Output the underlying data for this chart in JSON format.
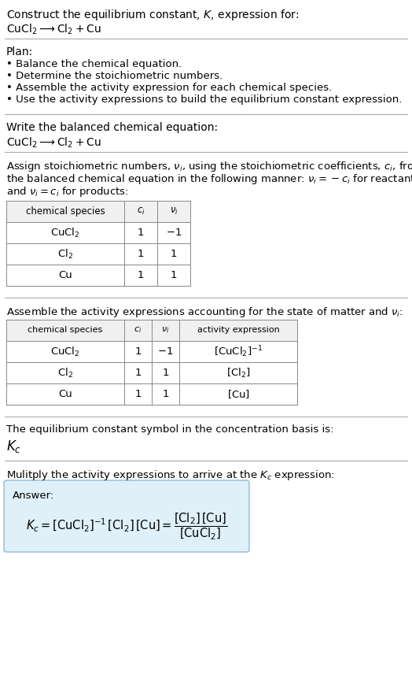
{
  "title_line1": "Construct the equilibrium constant, $K$, expression for:",
  "title_line2": "$\\mathrm{CuCl_2} \\longrightarrow \\mathrm{Cl_2} + \\mathrm{Cu}$",
  "plan_header": "Plan:",
  "plan_items": [
    "• Balance the chemical equation.",
    "• Determine the stoichiometric numbers.",
    "• Assemble the activity expression for each chemical species.",
    "• Use the activity expressions to build the equilibrium constant expression."
  ],
  "balanced_header": "Write the balanced chemical equation:",
  "balanced_eq": "$\\mathrm{CuCl_2} \\longrightarrow \\mathrm{Cl_2} + \\mathrm{Cu}$",
  "stoich_intro_lines": [
    "Assign stoichiometric numbers, $\\nu_i$, using the stoichiometric coefficients, $c_i$, from",
    "the balanced chemical equation in the following manner: $\\nu_i = -c_i$ for reactants",
    "and $\\nu_i = c_i$ for products:"
  ],
  "table1_headers": [
    "chemical species",
    "$c_i$",
    "$\\nu_i$"
  ],
  "table1_rows": [
    [
      "$\\mathrm{CuCl_2}$",
      "1",
      "$-1$"
    ],
    [
      "$\\mathrm{Cl_2}$",
      "1",
      "1"
    ],
    [
      "Cu",
      "1",
      "1"
    ]
  ],
  "assemble_intro": "Assemble the activity expressions accounting for the state of matter and $\\nu_i$:",
  "table2_headers": [
    "chemical species",
    "$c_i$",
    "$\\nu_i$",
    "activity expression"
  ],
  "table2_rows": [
    [
      "$\\mathrm{CuCl_2}$",
      "1",
      "$-1$",
      "$[\\mathrm{CuCl_2}]^{-1}$"
    ],
    [
      "$\\mathrm{Cl_2}$",
      "1",
      "1",
      "$[\\mathrm{Cl_2}]$"
    ],
    [
      "Cu",
      "1",
      "1",
      "$[\\mathrm{Cu}]$"
    ]
  ],
  "kc_text": "The equilibrium constant symbol in the concentration basis is:",
  "kc_symbol": "$K_c$",
  "multiply_text": "Mulitply the activity expressions to arrive at the $K_c$ expression:",
  "answer_label": "Answer:",
  "answer_line1": "$K_c = [\\mathrm{CuCl_2}]^{-1}\\,[\\mathrm{Cl_2}]\\,[\\mathrm{Cu}] = \\dfrac{[\\mathrm{Cl_2}]\\,[\\mathrm{Cu}]}{[\\mathrm{CuCl_2}]}$",
  "bg_color": "#ffffff",
  "text_color": "#000000",
  "answer_box_bg": "#dff0f8",
  "answer_box_border": "#90bcd4",
  "divider_color": "#aaaaaa",
  "table_border_color": "#888888",
  "font_size": 10.0
}
